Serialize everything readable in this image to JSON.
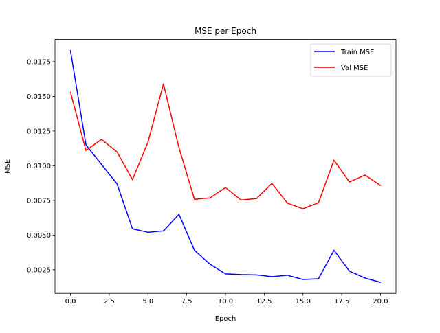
{
  "chart_data": {
    "type": "line",
    "title": "MSE per Epoch",
    "xlabel": "Epoch",
    "ylabel": "MSE",
    "xlim": [
      -1.0,
      21.0
    ],
    "ylim": [
      0.0008,
      0.0191
    ],
    "xticks": [
      0.0,
      2.5,
      5.0,
      7.5,
      10.0,
      12.5,
      15.0,
      17.5,
      20.0
    ],
    "xtick_labels": [
      "0.0",
      "2.5",
      "5.0",
      "7.5",
      "10.0",
      "12.5",
      "15.0",
      "17.5",
      "20.0"
    ],
    "yticks": [
      0.0025,
      0.005,
      0.0075,
      0.01,
      0.0125,
      0.015,
      0.0175
    ],
    "ytick_labels": [
      "0.0025",
      "0.0050",
      "0.0075",
      "0.0100",
      "0.0125",
      "0.0150",
      "0.0175"
    ],
    "grid": false,
    "legend_position": "top-right",
    "x": [
      0,
      1,
      2,
      3,
      4,
      5,
      6,
      7,
      8,
      9,
      10,
      11,
      12,
      13,
      14,
      15,
      16,
      17,
      18,
      19,
      20
    ],
    "series": [
      {
        "name": "Train MSE",
        "color": "#0000ff",
        "values": [
          0.0183,
          0.0115,
          0.0101,
          0.0087,
          0.00545,
          0.0052,
          0.0053,
          0.0065,
          0.0039,
          0.0029,
          0.0022,
          0.00215,
          0.00213,
          0.002,
          0.0021,
          0.0018,
          0.00185,
          0.0039,
          0.0024,
          0.0019,
          0.0016
        ]
      },
      {
        "name": "Val MSE",
        "color": "#ff0000",
        "values": [
          0.0153,
          0.0111,
          0.0119,
          0.011,
          0.009,
          0.0117,
          0.0159,
          0.0113,
          0.00758,
          0.00768,
          0.00843,
          0.00753,
          0.00763,
          0.00873,
          0.0073,
          0.0069,
          0.00733,
          0.0104,
          0.00883,
          0.00933,
          0.00858
        ]
      }
    ]
  }
}
